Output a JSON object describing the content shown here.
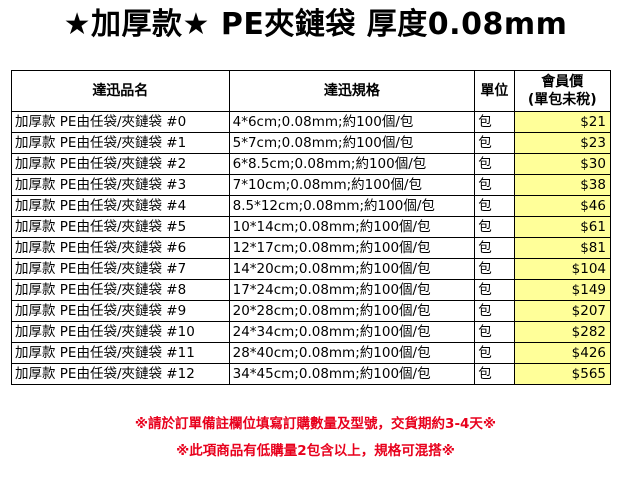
{
  "title": "★加厚款★ PE夾鏈袋  厚度0.08mm",
  "table": {
    "headers": {
      "name": "達迅品名",
      "spec": "達迅規格",
      "unit": "單位",
      "price_line1": "會員價",
      "price_line2": "(單包未稅)"
    },
    "rows": [
      {
        "name": "加厚款 PE由任袋/夾鏈袋 #0",
        "spec": "4*6cm;0.08mm;約100個/包",
        "unit": "包",
        "price": "$21"
      },
      {
        "name": "加厚款 PE由任袋/夾鏈袋 #1",
        "spec": "5*7cm;0.08mm;約100個/包",
        "unit": "包",
        "price": "$23"
      },
      {
        "name": "加厚款 PE由任袋/夾鏈袋 #2",
        "spec": "6*8.5cm;0.08mm;約100個/包",
        "unit": "包",
        "price": "$30"
      },
      {
        "name": "加厚款 PE由任袋/夾鏈袋 #3",
        "spec": "7*10cm;0.08mm;約100個/包",
        "unit": "包",
        "price": "$38"
      },
      {
        "name": "加厚款 PE由任袋/夾鏈袋 #4",
        "spec": "8.5*12cm;0.08mm;約100個/包",
        "unit": "包",
        "price": "$46"
      },
      {
        "name": "加厚款 PE由任袋/夾鏈袋 #5",
        "spec": "10*14cm;0.08mm;約100個/包",
        "unit": "包",
        "price": "$61"
      },
      {
        "name": "加厚款 PE由任袋/夾鏈袋 #6",
        "spec": "12*17cm;0.08mm;約100個/包",
        "unit": "包",
        "price": "$81"
      },
      {
        "name": "加厚款 PE由任袋/夾鏈袋 #7",
        "spec": "14*20cm;0.08mm;約100個/包",
        "unit": "包",
        "price": "$104"
      },
      {
        "name": "加厚款 PE由任袋/夾鏈袋 #8",
        "spec": "17*24cm;0.08mm;約100個/包",
        "unit": "包",
        "price": "$149"
      },
      {
        "name": "加厚款 PE由任袋/夾鏈袋 #9",
        "spec": "20*28cm;0.08mm;約100個/包",
        "unit": "包",
        "price": "$207"
      },
      {
        "name": "加厚款 PE由任袋/夾鏈袋 #10",
        "spec": "24*34cm;0.08mm;約100個/包",
        "unit": "包",
        "price": "$282"
      },
      {
        "name": "加厚款 PE由任袋/夾鏈袋 #11",
        "spec": "28*40cm;0.08mm;約100個/包",
        "unit": "包",
        "price": "$426"
      },
      {
        "name": "加厚款 PE由任袋/夾鏈袋 #12",
        "spec": "34*45cm;0.08mm;約100個/包",
        "unit": "包",
        "price": "$565"
      }
    ]
  },
  "notes": {
    "line1": "※請於訂單備註欄位填寫訂購數量及型號，交貨期約3-4天※",
    "line2": "※此項商品有低購量2包含以上，規格可混搭※"
  },
  "colors": {
    "price_highlight": "#ffff99",
    "note_text": "#e8001c"
  }
}
